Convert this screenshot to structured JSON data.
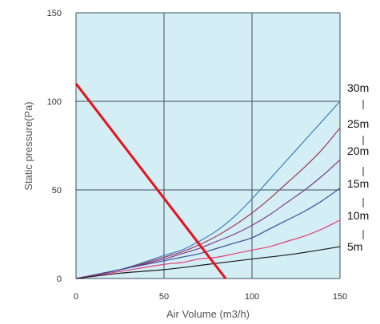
{
  "chart_data": {
    "type": "line",
    "xlabel": "Air Volume (m3/h)",
    "ylabel": "Static pressure(Pa)",
    "xlim": [
      0,
      150
    ],
    "ylim": [
      0,
      150
    ],
    "x_ticks": [
      "0",
      "50",
      "100",
      "150"
    ],
    "y_ticks": [
      "0",
      "50",
      "100",
      "150"
    ],
    "grid": true,
    "legend": "right-side labels",
    "background_color": "#d4eef5",
    "grid_color": "#3a4f5c",
    "fan_curve": {
      "color": "#e8101a",
      "points": [
        [
          0,
          110
        ],
        [
          85,
          0
        ]
      ]
    },
    "series": [
      {
        "name": "30m",
        "color": "#3a7fc0",
        "points": [
          [
            0,
            0
          ],
          [
            25,
            5
          ],
          [
            50,
            13
          ],
          [
            60,
            16
          ],
          [
            70,
            21
          ],
          [
            80,
            27
          ],
          [
            90,
            35
          ],
          [
            100,
            45
          ],
          [
            110,
            56
          ],
          [
            120,
            67
          ],
          [
            130,
            78
          ],
          [
            140,
            89
          ],
          [
            150,
            100
          ]
        ]
      },
      {
        "name": "25m",
        "color": "#9b3a5c",
        "points": [
          [
            0,
            0
          ],
          [
            25,
            5
          ],
          [
            50,
            12
          ],
          [
            60,
            15
          ],
          [
            70,
            19
          ],
          [
            80,
            24
          ],
          [
            90,
            30
          ],
          [
            100,
            37
          ],
          [
            110,
            45
          ],
          [
            120,
            54
          ],
          [
            130,
            63
          ],
          [
            140,
            73
          ],
          [
            150,
            85
          ]
        ]
      },
      {
        "name": "20m",
        "color": "#7a3a8a",
        "points": [
          [
            0,
            0
          ],
          [
            25,
            5
          ],
          [
            50,
            11
          ],
          [
            60,
            14
          ],
          [
            70,
            17
          ],
          [
            80,
            21
          ],
          [
            90,
            25
          ],
          [
            100,
            30
          ],
          [
            110,
            36
          ],
          [
            120,
            43
          ],
          [
            130,
            50
          ],
          [
            140,
            58
          ],
          [
            150,
            67
          ]
        ]
      },
      {
        "name": "15m",
        "color": "#3a4a9c",
        "points": [
          [
            0,
            0
          ],
          [
            25,
            5
          ],
          [
            50,
            10
          ],
          [
            60,
            12
          ],
          [
            70,
            14
          ],
          [
            80,
            17
          ],
          [
            90,
            20
          ],
          [
            100,
            23
          ],
          [
            110,
            28
          ],
          [
            120,
            33
          ],
          [
            130,
            38
          ],
          [
            140,
            44
          ],
          [
            150,
            51
          ]
        ]
      },
      {
        "name": "10m",
        "color": "#e0407a",
        "points": [
          [
            0,
            0
          ],
          [
            25,
            4
          ],
          [
            50,
            8
          ],
          [
            60,
            9
          ],
          [
            70,
            11
          ],
          [
            80,
            12
          ],
          [
            90,
            14
          ],
          [
            100,
            16
          ],
          [
            110,
            18
          ],
          [
            120,
            21
          ],
          [
            130,
            24
          ],
          [
            140,
            28
          ],
          [
            150,
            33
          ]
        ]
      },
      {
        "name": "5m",
        "color": "#1a1a1a",
        "points": [
          [
            0,
            0
          ],
          [
            25,
            3
          ],
          [
            50,
            5
          ],
          [
            75,
            8
          ],
          [
            100,
            11
          ],
          [
            125,
            14
          ],
          [
            150,
            18
          ]
        ]
      }
    ]
  }
}
